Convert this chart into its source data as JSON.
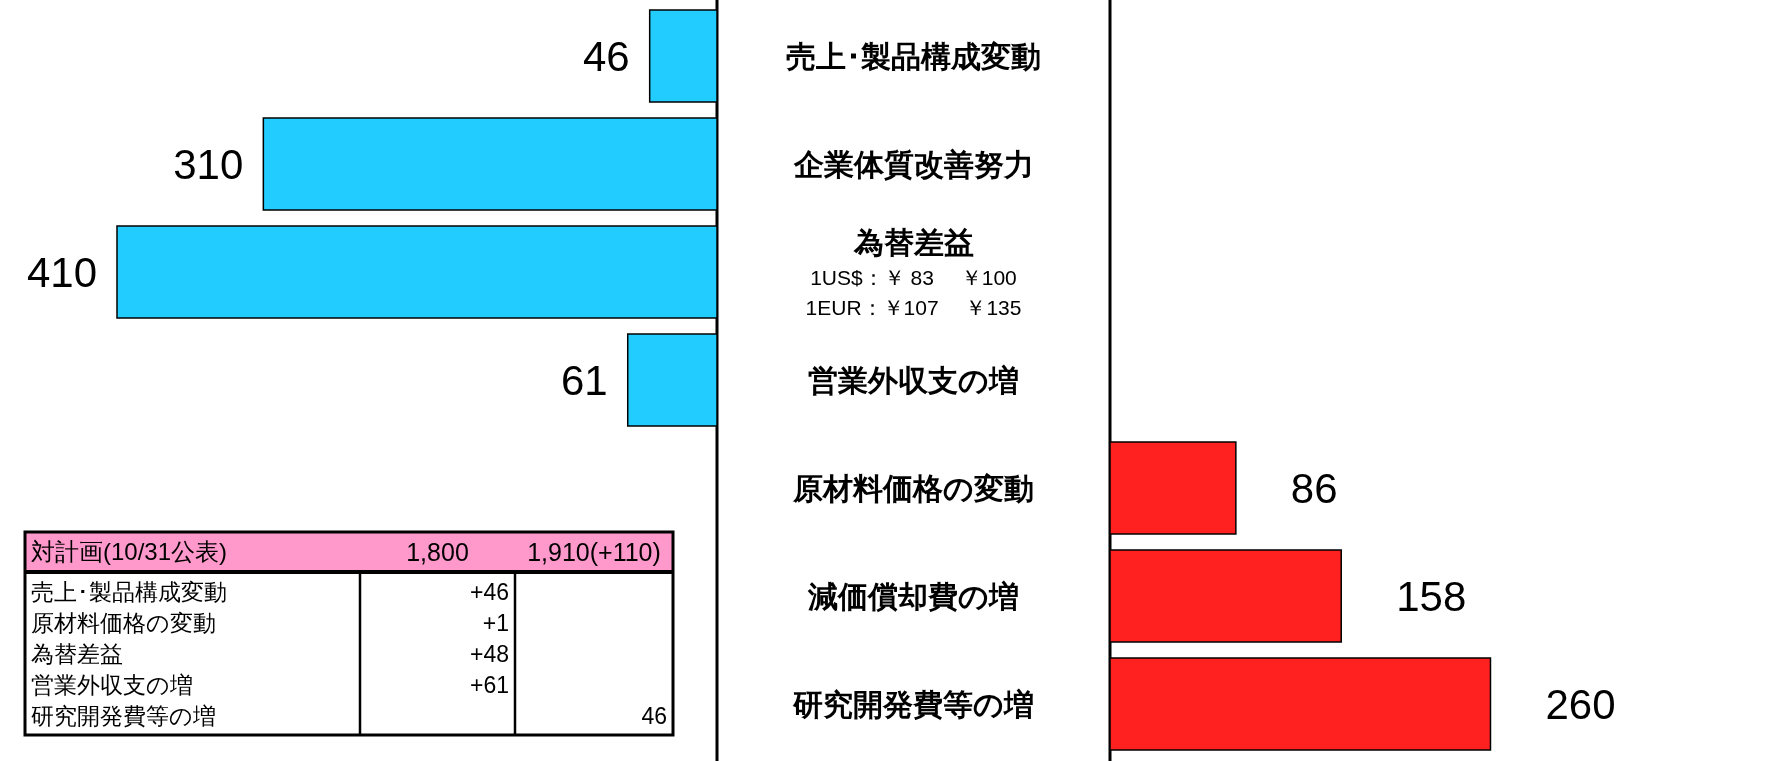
{
  "chart_data": [
    {
      "type": "bar",
      "orientation": "horizontal",
      "categories": [
        "売上･製品構成変動",
        "企業体質改善努力",
        "為替差益",
        "営業外収支の増",
        null,
        null,
        null
      ],
      "tick_labels": "y",
      "data_labels": true,
      "series": [
        {
          "color": "#22ccff",
          "values": [
            46,
            310,
            410,
            61,
            null,
            null,
            null
          ]
        }
      ],
      "annotations": [
        "1US$：￥ 83　 ￥100",
        "1EUR：￥107　 ￥135"
      ]
    },
    {
      "type": "bar",
      "orientation": "horizontal",
      "categories": [
        null,
        null,
        null,
        null,
        "原材料価格の変動",
        "減価償却費の増",
        "研究開発費等の増"
      ],
      "tick_labels": "y",
      "data_labels": true,
      "series": [
        {
          "color": "#ff2020",
          "values": [
            null,
            null,
            null,
            null,
            86,
            158,
            260
          ]
        }
      ]
    },
    {
      "type": "other",
      "title": "対計画(10/31公表)",
      "categories": [
        "売上･製品構成変動",
        "原材料価格の変動",
        "為替差益",
        "営業外収支の増",
        "研究開発費等の増"
      ],
      "series": [
        {
          "name": "1,800",
          "values": [
            46,
            1,
            48,
            61,
            null
          ],
          "value_labels": [
            "+46",
            "+1",
            "+48",
            "+61",
            null
          ]
        },
        {
          "name": "1,910(+110)",
          "values": [
            null,
            null,
            null,
            null,
            46
          ],
          "value_labels": [
            null,
            null,
            null,
            null,
            "46"
          ]
        }
      ]
    }
  ]
}
